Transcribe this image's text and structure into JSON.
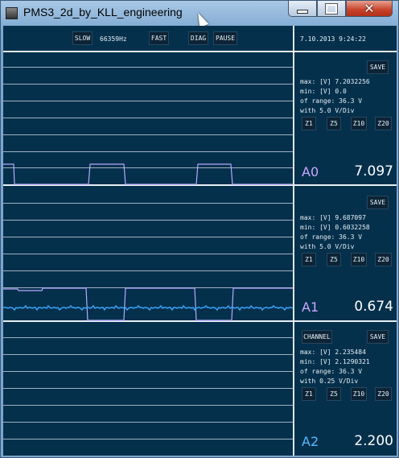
{
  "window": {
    "title": "PMS3_2d_by_KLL_engineering",
    "app_icon": "app-icon",
    "controls": [
      "minimize-icon",
      "maximize-icon",
      "close-icon"
    ]
  },
  "toolbar": {
    "slow": "SLOW",
    "frequency": "66359Hz",
    "fast": "FAST",
    "diag": "DIAG",
    "pause": "PAUSE",
    "datetime": "7.10.2013 9:24:22"
  },
  "channels": [
    {
      "name": "A0",
      "value": "7.097",
      "color": "#c9a8ff",
      "save": "SAVE",
      "channel_btn": "",
      "max": "max: [V] 7.2032256",
      "min": "min: [V] 0.0",
      "range": "of range: 36.3 V",
      "div": "with 5.0 V/Div",
      "zoom": [
        "Z1",
        "Z5",
        "Z10",
        "Z20"
      ]
    },
    {
      "name": "A1",
      "value": "0.674",
      "color": "#c9a8ff",
      "save": "SAVE",
      "channel_btn": "",
      "max": "max: [V] 9.687097",
      "min": "min: [V] 0.6032258",
      "range": "of range: 36.3 V",
      "div": "with 5.0 V/Div",
      "zoom": [
        "Z1",
        "Z5",
        "Z10",
        "Z20"
      ]
    },
    {
      "name": "A2",
      "value": "2.200",
      "color": "#58b8ff",
      "save": "SAVE",
      "channel_btn": "CHANNEL",
      "max": "max: [V] 2.235484",
      "min": "min: [V] 2.1290321",
      "range": "of range: 36.3 V",
      "div": "with 0.25 V/Div",
      "zoom": [
        "Z1",
        "Z5",
        "Z10",
        "Z20"
      ]
    }
  ],
  "colors": {
    "background": "#04304c",
    "grid": "#9fb2c0",
    "trace_a0": "#b6a8ff",
    "trace_a1_blue": "#3aa8ff"
  }
}
